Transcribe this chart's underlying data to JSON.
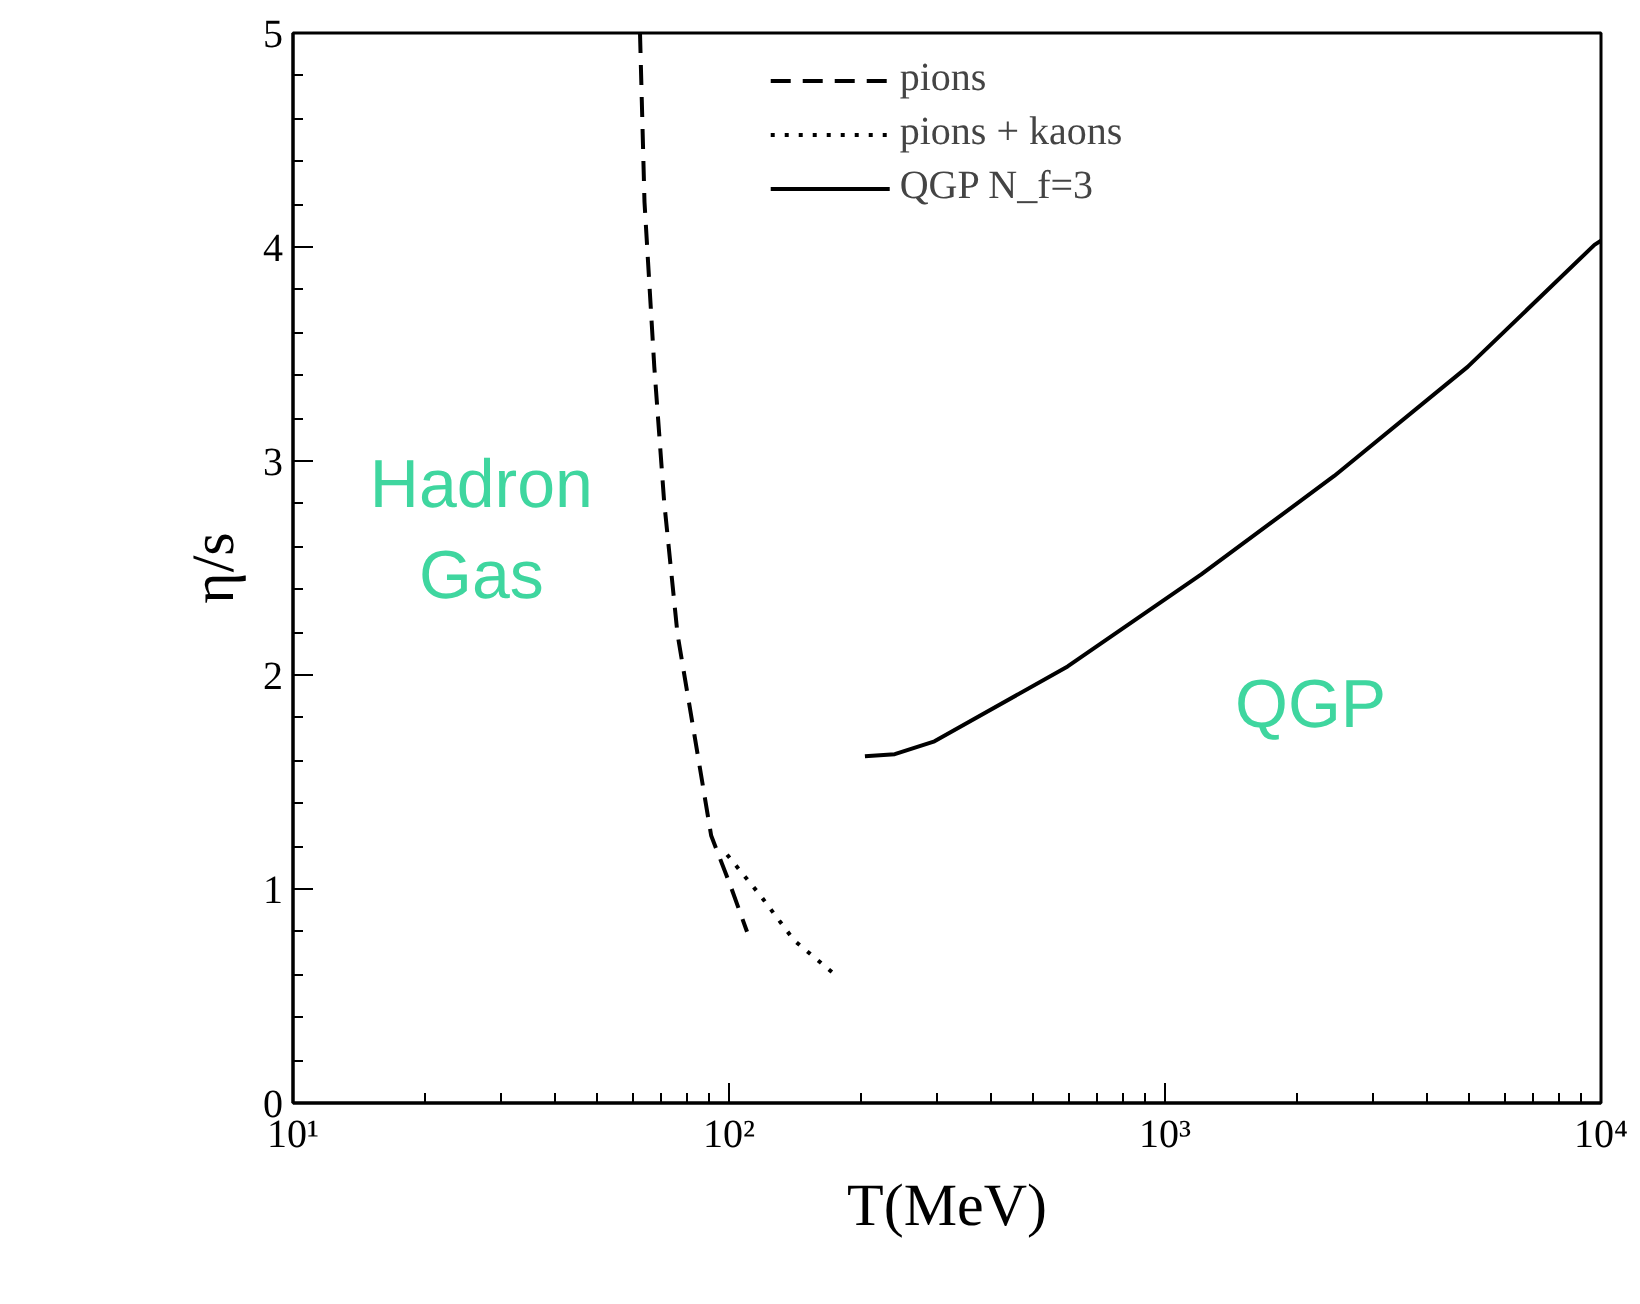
{
  "chart_data": {
    "type": "line",
    "xlabel": "T(MeV)",
    "ylabel": "η/s",
    "log": "x",
    "xlim": [
      10,
      10000
    ],
    "ylim": [
      0,
      5
    ],
    "xticks": [
      {
        "value": 10,
        "label": "10¹"
      },
      {
        "value": 100,
        "label": "10²"
      },
      {
        "value": 1000,
        "label": "10³"
      },
      {
        "value": 10000,
        "label": "10⁴"
      }
    ],
    "yticks": [
      0,
      1,
      2,
      3,
      4,
      5
    ],
    "grid": false,
    "legend": "top",
    "series": [
      {
        "name": "pions",
        "color": "#000000",
        "line_style": "dashed",
        "x": [
          62.5,
          64,
          67.4,
          71,
          76.2,
          83.3,
          91,
          101,
          110
        ],
        "values": [
          5.0,
          4.21,
          3.44,
          2.81,
          2.19,
          1.72,
          1.25,
          1.01,
          0.8
        ]
      },
      {
        "name": "pions + kaons",
        "color": "#000000",
        "line_style": "dotted",
        "x": [
          99,
          118,
          141,
          175
        ],
        "values": [
          1.16,
          0.97,
          0.76,
          0.6
        ]
      },
      {
        "name": "QGP N_f=3",
        "color": "#000000",
        "line_style": "solid",
        "x": [
          205,
          240,
          296,
          598,
          1211,
          2444,
          4944,
          9660,
          10000
        ],
        "values": [
          1.62,
          1.63,
          1.69,
          2.04,
          2.47,
          2.93,
          3.44,
          4.01,
          4.03
        ]
      }
    ],
    "annotations": [
      "Hadron Gas",
      "QGP"
    ]
  }
}
